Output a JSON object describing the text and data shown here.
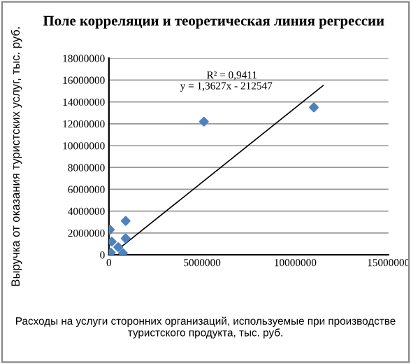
{
  "chart_data": {
    "type": "scatter",
    "title": "Поле корреляции и теоретическая линия регрессии",
    "xlabel": "Расходы на услуги сторонних организаций, используемые при производстве туристского продукта, тыс. руб.",
    "ylabel": "Выручка от оказания туристских услуг, тыс. руб.",
    "xlim": [
      0,
      15000000
    ],
    "xticks": [
      0,
      5000000,
      10000000,
      15000000
    ],
    "ylim": [
      0,
      18000000
    ],
    "yticks": [
      0,
      2000000,
      4000000,
      6000000,
      8000000,
      10000000,
      12000000,
      14000000,
      16000000,
      18000000
    ],
    "grid": "y",
    "annotations": [
      "y = 1,3627x - 212547",
      "R² = 0,9411"
    ],
    "series": [
      {
        "color": "#4f81bd",
        "marker": "diamond",
        "x": [
          5100000,
          11000000,
          50000,
          900000,
          100000,
          500000,
          150000,
          900000,
          750000
        ],
        "values": [
          12200000,
          13500000,
          2300000,
          3100000,
          200000,
          700000,
          1200000,
          1500000,
          150000
        ]
      },
      {
        "type": "line",
        "color": "#000000",
        "x": [
          500000,
          11500000
        ],
        "values": [
          500000,
          15500000
        ]
      }
    ]
  }
}
